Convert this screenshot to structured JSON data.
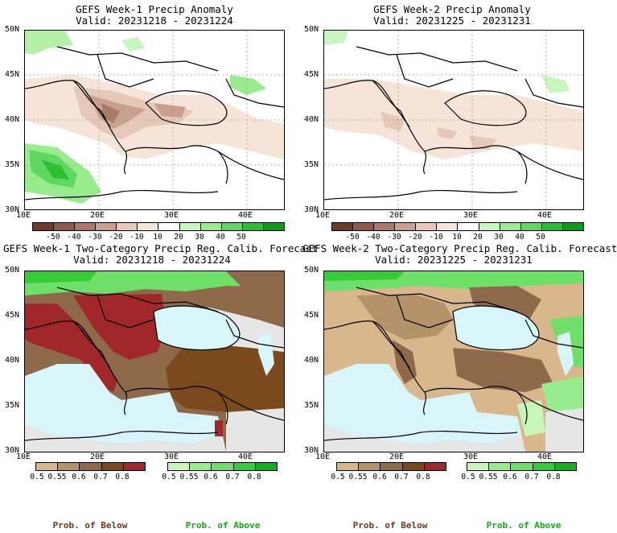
{
  "panels": [
    {
      "title": "GEFS Week-1 Precip Anomaly",
      "valid": "Valid: 20231218 - 20231224"
    },
    {
      "title": "GEFS Week-2 Precip Anomaly",
      "valid": "Valid: 20231225 - 20231231"
    },
    {
      "title": "GEFS Week-1 Two-Category Precip Reg. Calib. Forecast",
      "valid": "Valid: 20231218 - 20231224"
    },
    {
      "title": "GEFS Week-2 Two-Category Precip Reg. Calib. Forecast",
      "valid": "Valid: 20231225 - 20231231"
    }
  ],
  "axes": {
    "lat_labels": [
      "50N",
      "45N",
      "40N",
      "35N",
      "30N"
    ],
    "lon_labels": [
      "10E",
      "20E",
      "30E",
      "40E"
    ]
  },
  "anomaly_colorbar": {
    "ticks": [
      "-50",
      "-40",
      "-30",
      "-20",
      "-10",
      "10",
      "20",
      "30",
      "40",
      "50"
    ],
    "colors": [
      "#6e3a2c",
      "#8c5a4a",
      "#a97a6a",
      "#c9a08f",
      "#e6c8b8",
      "#f6e4d8",
      "#ffffff",
      "#c8f5c0",
      "#98ec8e",
      "#5fd862",
      "#2cbf34",
      "#0c9a1a"
    ]
  },
  "below_colorbar": {
    "ticks": [
      "0.5",
      "0.55",
      "0.6",
      "0.7",
      "0.8"
    ],
    "colors": [
      "#d8b78c",
      "#b5936a",
      "#8e6a4a",
      "#7a4a1c",
      "#a0282a"
    ]
  },
  "above_colorbar": {
    "ticks": [
      "0.5",
      "0.55",
      "0.6",
      "0.7",
      "0.8"
    ],
    "colors": [
      "#c8f5b8",
      "#98ec8e",
      "#6ee06a",
      "#35cc3a",
      "#10b020"
    ]
  },
  "captions": {
    "below": "Prob. of Below",
    "above": "Prob. of Above"
  },
  "colors": {
    "sea": "#d8f6fa",
    "no_data": "#e6e6e6",
    "below_caption": "#6b3a1f",
    "above_caption": "#19a719"
  }
}
